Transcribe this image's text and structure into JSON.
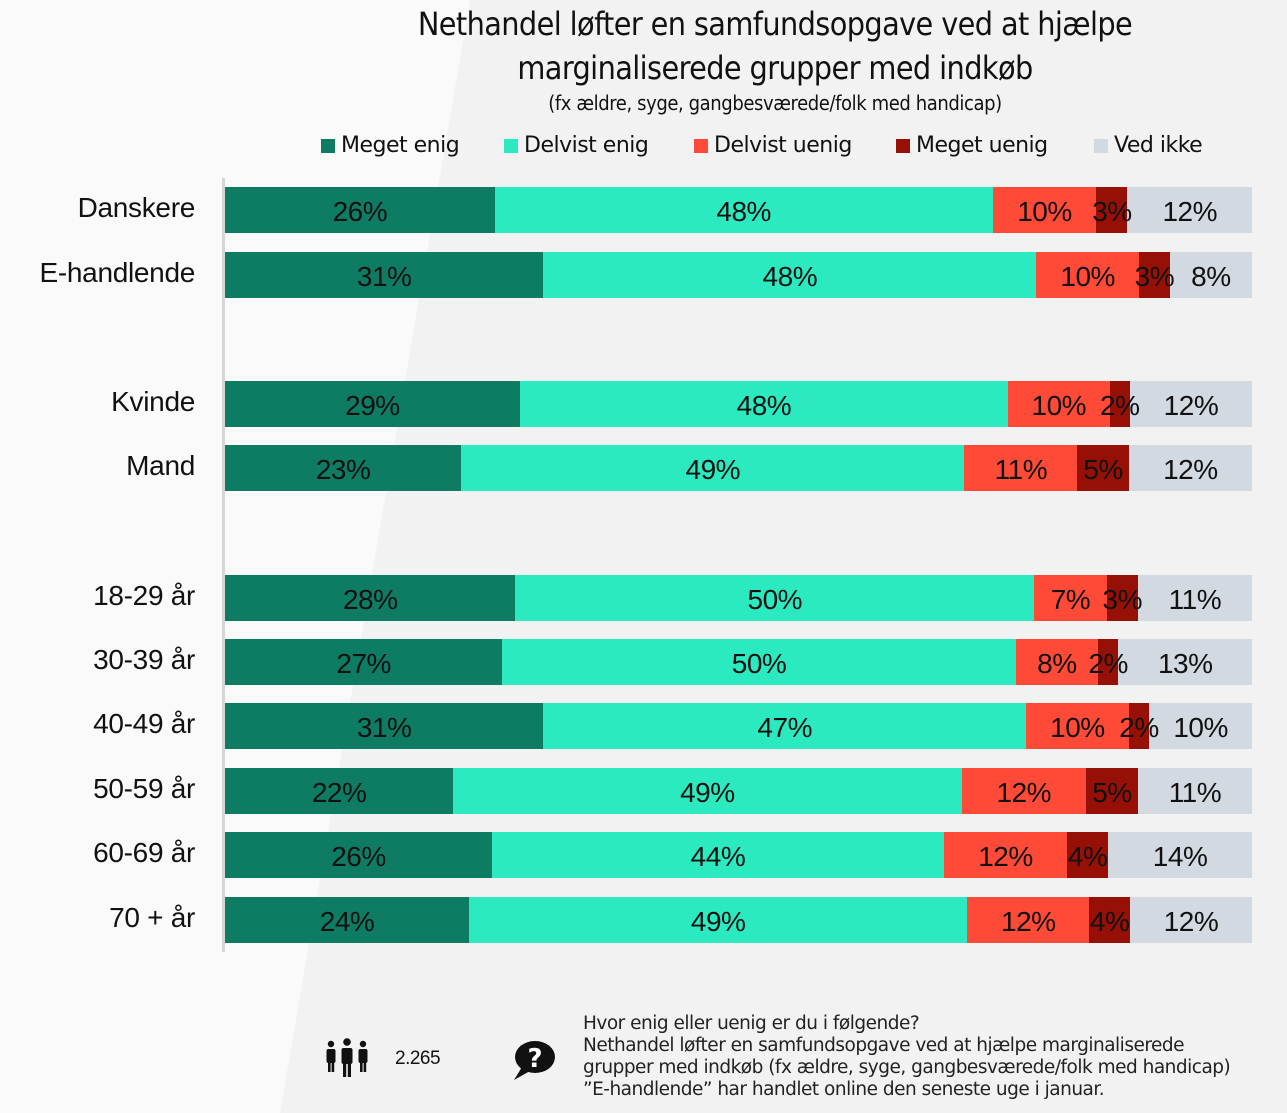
{
  "chart_data": {
    "type": "bar",
    "orientation": "horizontal",
    "stacked": "100%",
    "title": "Nethandel løfter en samfundsopgave ved at hjælpe marginaliserede grupper med indkøb",
    "title_lines": [
      "Nethandel løfter en samfundsopgave ved at hjælpe",
      "marginaliserede grupper med indkøb"
    ],
    "subtitle": "(fx ældre, syge, gangbesværede/folk med handicap)",
    "xlabel": "",
    "ylabel": "",
    "xlim": [
      0,
      100
    ],
    "grid": false,
    "legend_position": "top",
    "series_names": [
      "Meget enig",
      "Delvist enig",
      "Delvist uenig",
      "Meget uenig",
      "Ved ikke"
    ],
    "series_colors": [
      "#0e7b63",
      "#2beac0",
      "#ff4a37",
      "#961006",
      "#d3d9e1"
    ],
    "categories": [
      "Danskere",
      "E-handlende",
      "Kvinde",
      "Mand",
      "18-29 år",
      "30-39 år",
      "40-49 år",
      "50-59 år",
      "60-69 år",
      "70 + år"
    ],
    "groups": [
      [
        0,
        1
      ],
      [
        2,
        3
      ],
      [
        4,
        5,
        6,
        7,
        8,
        9
      ]
    ],
    "series": [
      {
        "name": "Meget enig",
        "values": [
          26,
          31,
          29,
          23,
          28,
          27,
          31,
          22,
          26,
          24
        ]
      },
      {
        "name": "Delvist enig",
        "values": [
          48,
          48,
          48,
          49,
          50,
          50,
          47,
          49,
          44,
          49
        ]
      },
      {
        "name": "Delvist uenig",
        "values": [
          10,
          10,
          10,
          11,
          7,
          8,
          10,
          12,
          12,
          12
        ]
      },
      {
        "name": "Meget uenig",
        "values": [
          3,
          3,
          2,
          5,
          3,
          2,
          2,
          5,
          4,
          4
        ]
      },
      {
        "name": "Ved ikke",
        "values": [
          12,
          8,
          12,
          12,
          11,
          13,
          10,
          11,
          14,
          12
        ]
      }
    ],
    "value_format": "{v}%"
  },
  "footer": {
    "people_icon": "people-icon",
    "sample_size": "2.265",
    "question_icon": "question-bubble-icon",
    "notes": [
      "Hvor enig eller uenig er du i følgende?",
      "Nethandel løfter en samfundsopgave ved at hjælpe marginaliserede",
      "grupper med indkøb (fx ældre, syge, gangbesværede/folk med handicap)",
      "”E-handlende” har handlet online den seneste uge i januar."
    ]
  }
}
